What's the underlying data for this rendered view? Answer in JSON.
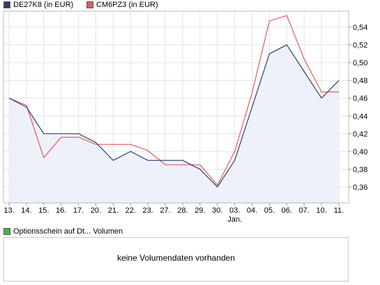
{
  "legend": {
    "s1": {
      "label": "DE27K8 (in EUR)",
      "color": "#2c3e6b"
    },
    "s2": {
      "label": "CM6PZ3 (in EUR)",
      "color": "#e8585e"
    }
  },
  "volume": {
    "legend_label": "Optionsschein auf Dt... Volumen",
    "legend_color": "#4caf50",
    "message": "keine Volumendaten vorhanden"
  },
  "chart_data": {
    "type": "line",
    "categories": [
      "13.",
      "14.",
      "15.",
      "16.",
      "17.",
      "20.",
      "21.",
      "22.",
      "23.",
      "27.",
      "28.",
      "29.",
      "30.",
      "03.",
      "04.",
      "05.",
      "06.",
      "07.",
      "10.",
      "11."
    ],
    "month_label": {
      "at": "03.",
      "text": "Jan."
    },
    "series": [
      {
        "name": "DE27K8 (in EUR)",
        "color": "#2c3e6b",
        "values": [
          0.46,
          0.45,
          0.42,
          0.42,
          0.42,
          0.41,
          0.39,
          0.4,
          0.39,
          0.39,
          0.39,
          0.38,
          0.36,
          0.39,
          0.45,
          0.51,
          0.52,
          0.49,
          0.46,
          0.48
        ]
      },
      {
        "name": "CM6PZ3 (in EUR)",
        "color": "#e8585e",
        "values": [
          0.46,
          0.452,
          0.393,
          0.416,
          0.416,
          0.408,
          0.408,
          0.408,
          0.401,
          0.385,
          0.385,
          0.385,
          0.362,
          0.4,
          0.466,
          0.547,
          0.553,
          0.504,
          0.467,
          0.467
        ]
      }
    ],
    "yticks": [
      0.36,
      0.38,
      0.4,
      0.42,
      0.44,
      0.46,
      0.48,
      0.5,
      0.52,
      0.54
    ],
    "ylim": [
      0.342,
      0.558
    ],
    "fill_color": "#eef0fa",
    "grid": true,
    "legend_position": "top-left"
  }
}
